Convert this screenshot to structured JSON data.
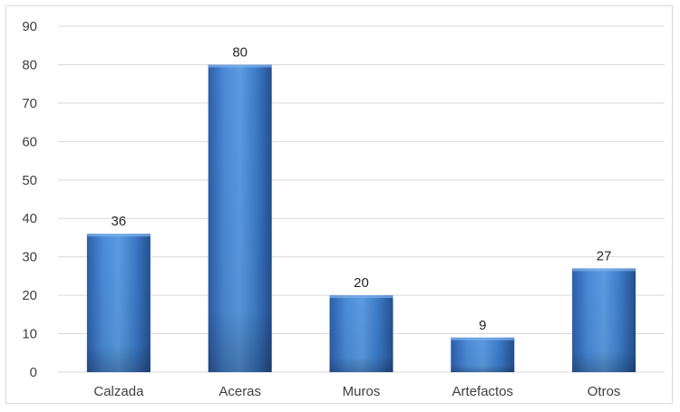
{
  "chart_data": {
    "type": "bar",
    "title": "",
    "xlabel": "",
    "ylabel": "",
    "categories": [
      "Calzada",
      "Aceras",
      "Muros",
      "Artefactos",
      "Otros"
    ],
    "values": [
      36,
      80,
      20,
      9,
      27
    ],
    "data_labels": [
      "36",
      "80",
      "20",
      "9",
      "27"
    ],
    "ylim": [
      0,
      90
    ],
    "yticks": [
      0,
      10,
      20,
      30,
      40,
      50,
      60,
      70,
      80,
      90
    ],
    "grid": true,
    "legend": "none",
    "colors": {
      "bar_light": "#5b9bd5",
      "bar_mid": "#3d7cc9",
      "bar_dark": "#1f4e8c",
      "grid": "#d9d9d9"
    }
  }
}
